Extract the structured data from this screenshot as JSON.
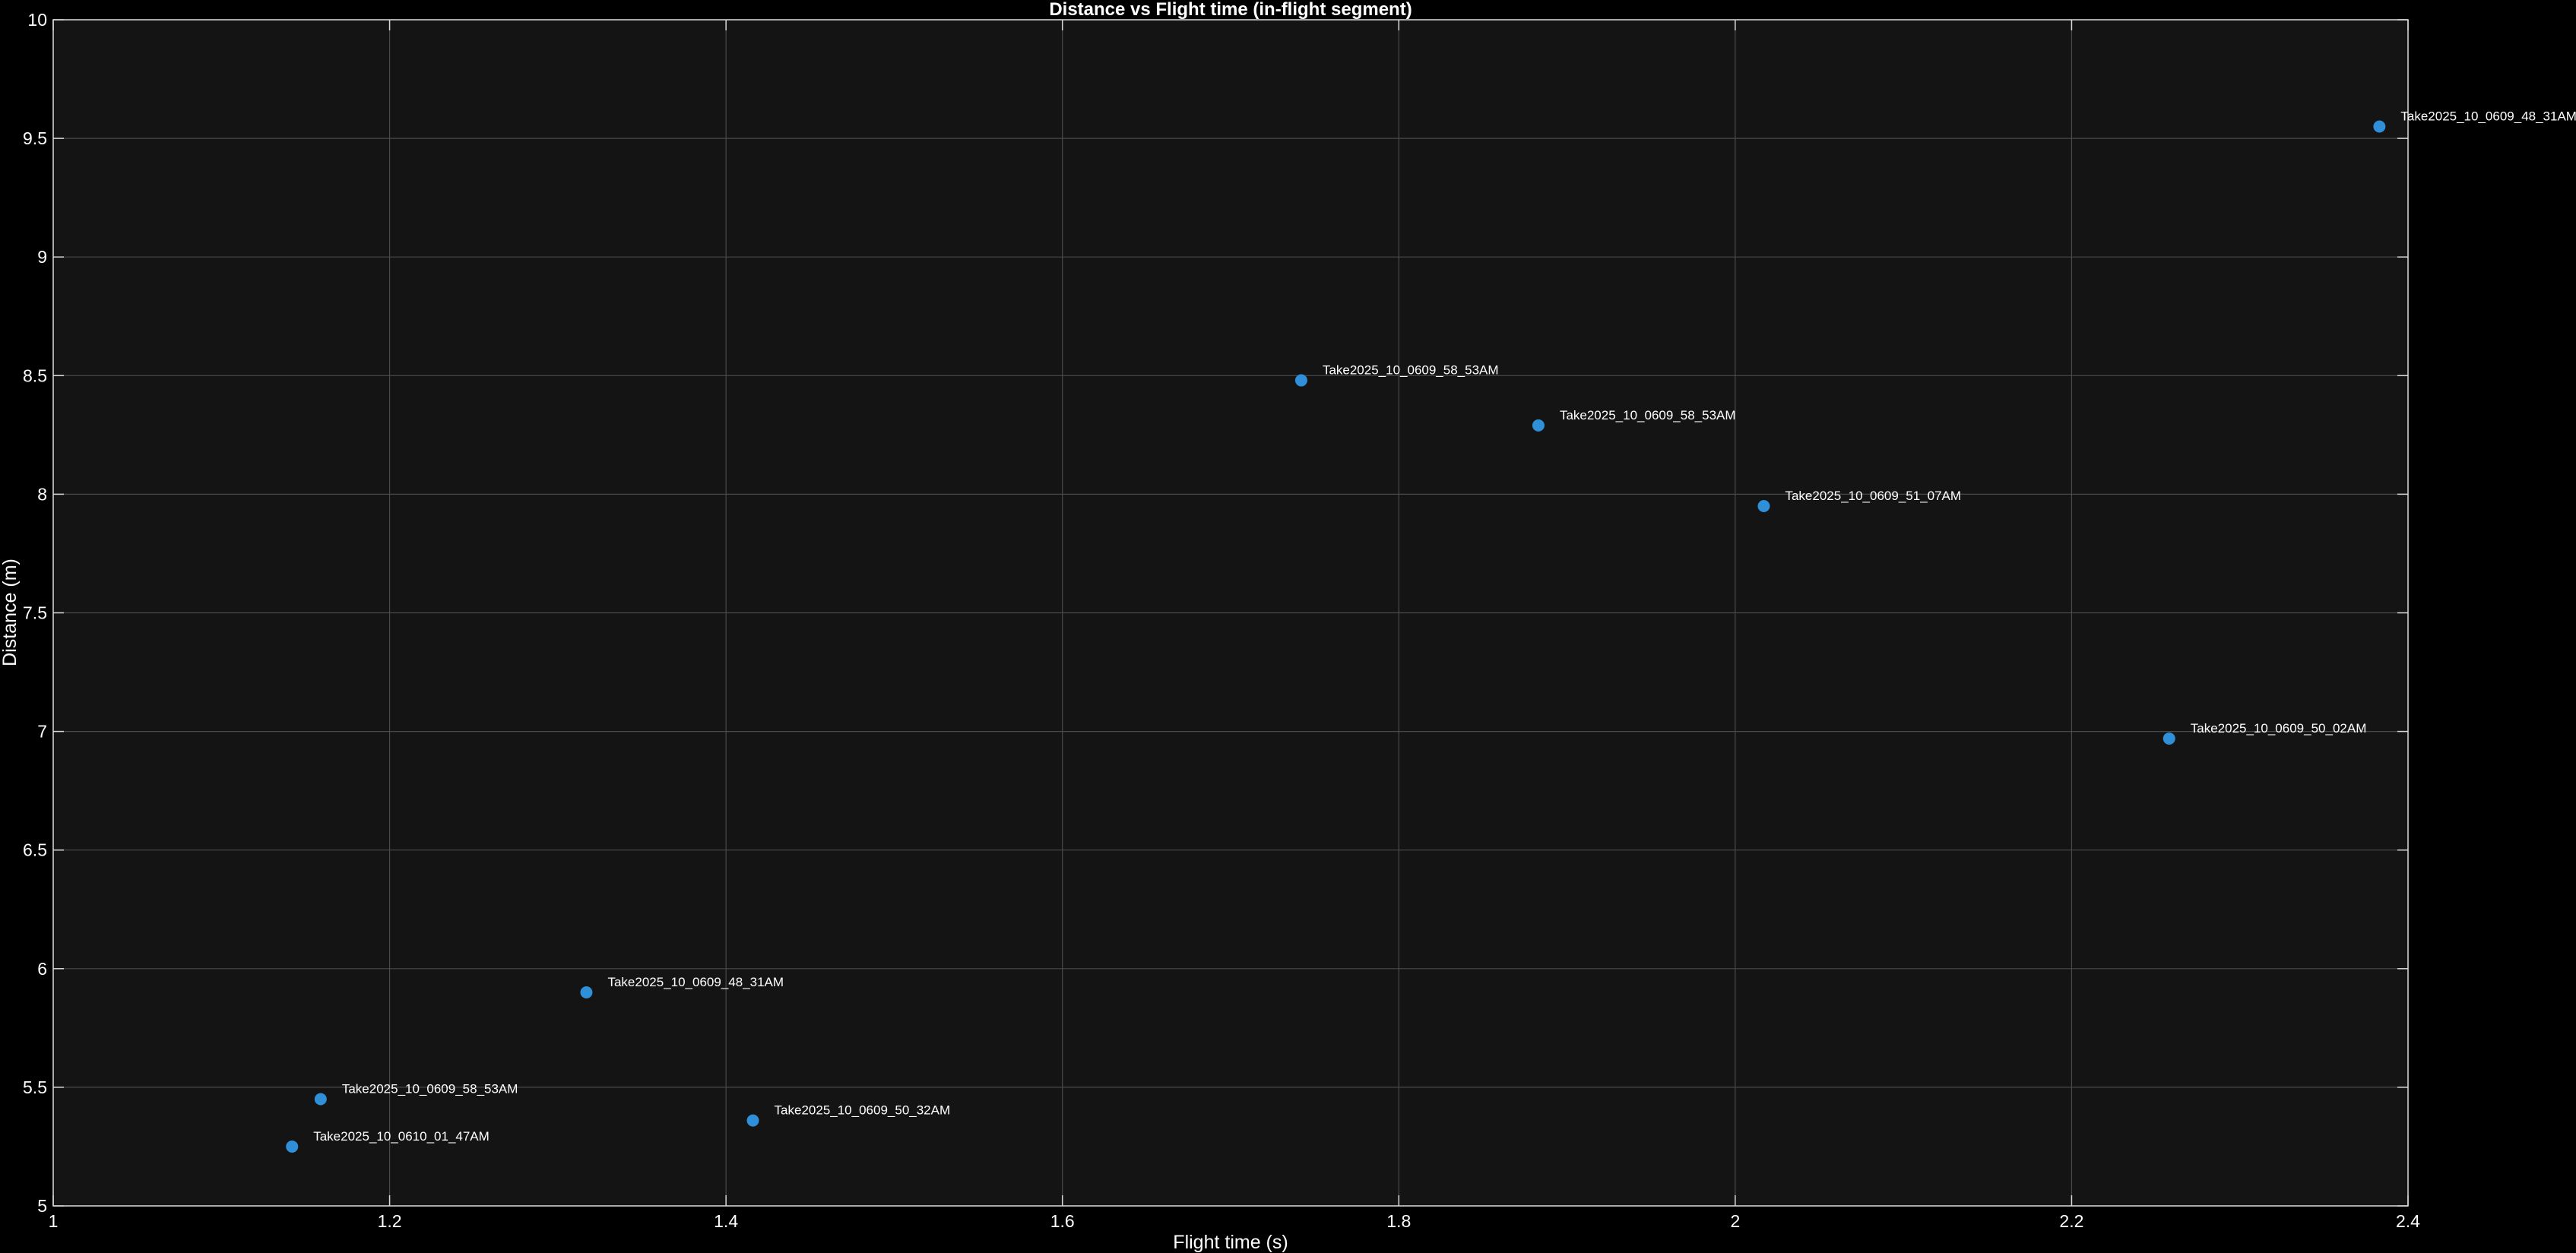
{
  "chart_data": {
    "type": "scatter",
    "title": "Distance vs Flight time (in-flight segment)",
    "xlabel": "Flight time (s)",
    "ylabel": "Distance (m)",
    "xlim": [
      1,
      2.4
    ],
    "ylim": [
      5,
      10
    ],
    "xticks": [
      1,
      1.2,
      1.4,
      1.6,
      1.8,
      2,
      2.2,
      2.4
    ],
    "xtick_labels": [
      "1",
      "1.2",
      "1.4",
      "1.6",
      "1.8",
      "2",
      "2.2",
      "2.4"
    ],
    "yticks": [
      5,
      5.5,
      6,
      6.5,
      7,
      7.5,
      8,
      8.5,
      9,
      9.5,
      10
    ],
    "ytick_labels": [
      "5",
      "5.5",
      "6",
      "6.5",
      "7",
      "7.5",
      "8",
      "8.5",
      "9",
      "9.5",
      "10"
    ],
    "grid": true,
    "points": [
      {
        "x": 1.142,
        "y": 5.25,
        "label": "Take2025_10_0610_01_47AM"
      },
      {
        "x": 1.159,
        "y": 5.45,
        "label": "Take2025_10_0609_58_53AM"
      },
      {
        "x": 1.317,
        "y": 5.9,
        "label": "Take2025_10_0609_48_31AM"
      },
      {
        "x": 1.416,
        "y": 5.36,
        "label": "Take2025_10_0609_50_32AM"
      },
      {
        "x": 1.742,
        "y": 8.48,
        "label": "Take2025_10_0609_58_53AM"
      },
      {
        "x": 1.883,
        "y": 8.29,
        "label": "Take2025_10_0609_58_53AM"
      },
      {
        "x": 2.017,
        "y": 7.95,
        "label": "Take2025_10_0609_51_07AM"
      },
      {
        "x": 2.258,
        "y": 6.97,
        "label": "Take2025_10_0609_50_02AM"
      },
      {
        "x": 2.383,
        "y": 9.55,
        "label": "Take2025_10_0609_48_31AM"
      }
    ]
  },
  "colors": {
    "figure_background": "#000000",
    "axes_background": "#141414",
    "grid": "#4a4a4a",
    "axis": "#d9d9d9",
    "text": "#ffffff",
    "marker": "#2f8fd8"
  }
}
